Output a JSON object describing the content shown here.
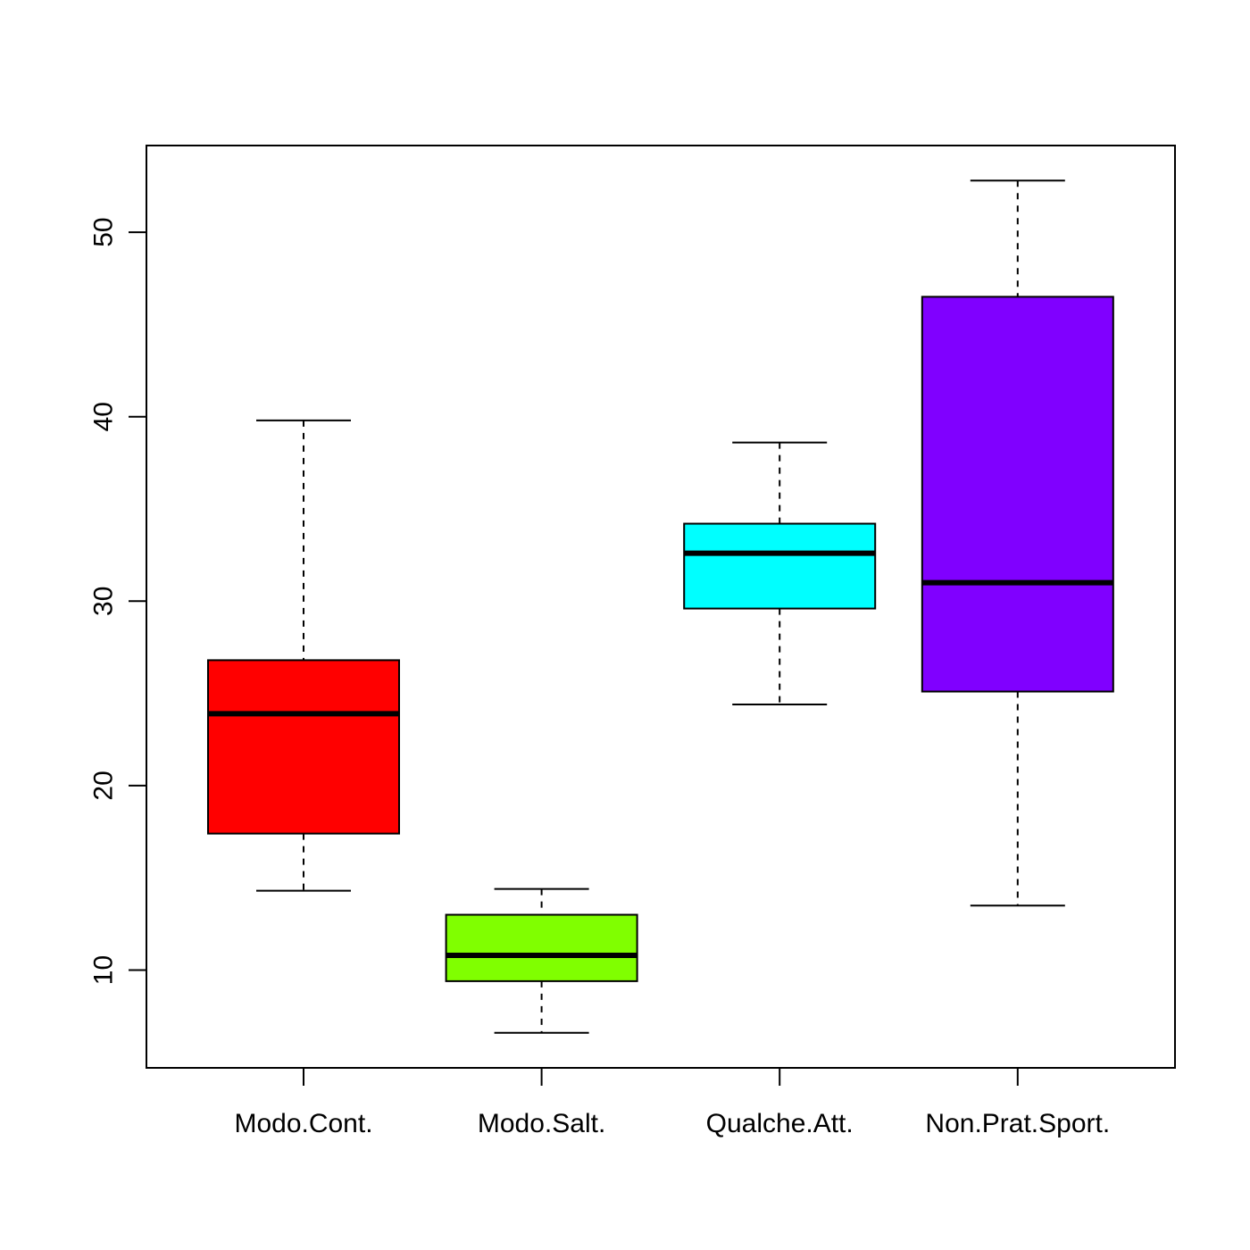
{
  "chart_data": {
    "type": "boxplot",
    "title": "",
    "xlabel": "",
    "ylabel": "",
    "ylim": [
      4.7,
      54.7
    ],
    "y_ticks": [
      10,
      20,
      30,
      40,
      50
    ],
    "grid": false,
    "legend": "none",
    "categories": [
      "Modo.Cont.",
      "Modo.Salt.",
      "Qualche.Att.",
      "Non.Prat.Sport."
    ],
    "colors": [
      "#FF0000",
      "#80FF00",
      "#00FFFF",
      "#8000FF"
    ],
    "boxes": [
      {
        "category": "Modo.Cont.",
        "whisker_low": 14.3,
        "q1": 17.4,
        "median": 23.9,
        "q3": 26.8,
        "whisker_high": 39.8
      },
      {
        "category": "Modo.Salt.",
        "whisker_low": 6.6,
        "q1": 9.4,
        "median": 10.8,
        "q3": 13.0,
        "whisker_high": 14.4
      },
      {
        "category": "Qualche.Att.",
        "whisker_low": 24.4,
        "q1": 29.6,
        "median": 32.6,
        "q3": 34.2,
        "whisker_high": 38.6
      },
      {
        "category": "Non.Prat.Sport.",
        "whisker_low": 13.5,
        "q1": 25.1,
        "median": 31.0,
        "q3": 46.5,
        "whisker_high": 52.8
      }
    ]
  }
}
